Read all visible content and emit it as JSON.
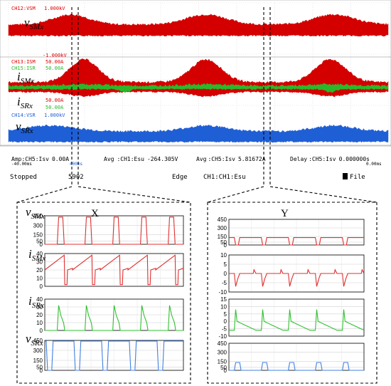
{
  "scope": {
    "channels": {
      "ch12": {
        "label": "CH12:VSM",
        "scale": "1.000kV",
        "color": "#e00000"
      },
      "ch13": {
        "label": "CH13:ISM",
        "scale": "50.00A",
        "color": "#e00000",
        "scale_neg": "-1.000kV"
      },
      "ch15": {
        "label": "CH15:ISR",
        "scale": "50.00A",
        "color": "#2ab82a"
      },
      "ch14": {
        "label": "CH14:VSR",
        "scale": "1.000kV",
        "color": "#1f5fd6"
      },
      "ch_extra": {
        "scale_a": "50.00A",
        "scale_b": "50.00A"
      }
    },
    "signal_labels": {
      "vsm": "v",
      "vsm_sub": "SMx",
      "ism": "i",
      "ism_sub": "SMx",
      "isr": "i",
      "isr_sub": "SRx",
      "vsr": "v",
      "vsr_sub": "SRx"
    },
    "time_left": "-40.00ms",
    "time_right": "0.00ms",
    "time_mid": "400ms",
    "meas": {
      "m1_prefix": "Amp",
      "m1": ":CH5:Isv",
      "m1_val": "0.00A",
      "m2_prefix": "Avg",
      "m2": ":CH1:Esu",
      "m2_val": "-264.305V",
      "m3_prefix": "Avg",
      "m3": ":CH5:Isv",
      "m3_val": "5.81672A",
      "m4_prefix": "Delay",
      "m4": ":CH5:Isv",
      "m4_val": "0.000000s"
    },
    "status": {
      "state": "Stopped",
      "count": "5902",
      "trigger": "Edge",
      "trig_src": "CH1:CH1:Esu",
      "file": "File"
    }
  },
  "panels": {
    "X": {
      "title": "X"
    },
    "Y": {
      "title": "Y"
    }
  },
  "chart_data": [
    {
      "type": "line",
      "name": "X-vSMx",
      "title": "X",
      "ylim": [
        0,
        450
      ],
      "yticks": [
        0,
        50,
        150,
        300,
        450
      ],
      "series": [
        {
          "name": "vSMx",
          "color": "#e03030",
          "pattern": "pulse",
          "high": 430,
          "low": 0,
          "periods": 5
        }
      ]
    },
    {
      "type": "line",
      "name": "X-iSMx",
      "ylim": [
        0,
        40
      ],
      "yticks": [
        0,
        10,
        20,
        30,
        40
      ],
      "series": [
        {
          "name": "iSMx",
          "color": "#e03030",
          "pattern": "sawtooth",
          "min": 20,
          "max": 38,
          "periods": 5
        }
      ]
    },
    {
      "type": "line",
      "name": "X-iSRx",
      "ylim": [
        0,
        40
      ],
      "yticks": [
        0,
        10,
        20,
        30,
        40
      ],
      "series": [
        {
          "name": "iSRx",
          "color": "#30c030",
          "pattern": "decay",
          "peak": 32,
          "periods": 5
        }
      ]
    },
    {
      "type": "line",
      "name": "X-vSRx",
      "ylim": [
        0,
        450
      ],
      "yticks": [
        0,
        50,
        150,
        300,
        450
      ],
      "series": [
        {
          "name": "vSRx",
          "color": "#4080e0",
          "pattern": "pulse-inv",
          "high": 440,
          "low": 0,
          "periods": 5
        }
      ]
    },
    {
      "type": "line",
      "name": "Y-vSMx",
      "title": "Y",
      "ylim": [
        0,
        450
      ],
      "yticks": [
        0,
        50,
        150,
        300,
        450
      ],
      "series": [
        {
          "name": "vSMx",
          "color": "#e03030",
          "pattern": "notch",
          "high": 130,
          "low": 0,
          "periods": 5
        }
      ]
    },
    {
      "type": "line",
      "name": "Y-iSMx",
      "ylim": [
        -10,
        10
      ],
      "yticks": [
        -10,
        -5,
        0,
        5,
        10
      ],
      "series": [
        {
          "name": "iSMx",
          "color": "#e03030",
          "pattern": "neg-spike",
          "base": 0,
          "low": -7,
          "periods": 5
        }
      ]
    },
    {
      "type": "line",
      "name": "Y-iSRx",
      "ylim": [
        -10,
        15
      ],
      "yticks": [
        -10,
        -5,
        0,
        5,
        10,
        15
      ],
      "series": [
        {
          "name": "iSRx",
          "color": "#30c030",
          "pattern": "ramp-down",
          "start": 0,
          "end": -6,
          "periods": 5
        }
      ]
    },
    {
      "type": "line",
      "name": "Y-vSRx",
      "ylim": [
        0,
        450
      ],
      "yticks": [
        0,
        50,
        150,
        300,
        450
      ],
      "series": [
        {
          "name": "vSRx",
          "color": "#4080e0",
          "pattern": "pulse-small",
          "high": 130,
          "low": 0,
          "periods": 5
        }
      ]
    }
  ]
}
